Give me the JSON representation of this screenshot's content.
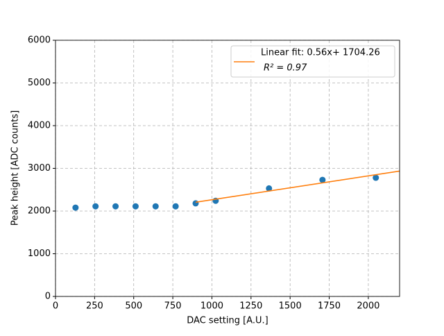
{
  "chart_data": {
    "type": "scatter",
    "xlabel": "DAC setting [A.U.]",
    "ylabel": "Peak height [ADC counts]",
    "xlim": [
      0,
      2200
    ],
    "xticks": [
      0,
      250,
      500,
      750,
      1000,
      1250,
      1500,
      1750,
      2000
    ],
    "ylim": [
      0,
      6000
    ],
    "yticks": [
      0,
      1000,
      2000,
      3000,
      4000,
      5000,
      6000
    ],
    "grid": true,
    "legend": "upper right",
    "series": [
      {
        "type": "scatter",
        "color": "#1f77b4",
        "x": [
          128,
          256,
          384,
          512,
          640,
          768,
          896,
          1024,
          1365,
          1707,
          2048
        ],
        "values": [
          2080,
          2110,
          2110,
          2110,
          2110,
          2110,
          2180,
          2240,
          2530,
          2730,
          2780
        ]
      },
      {
        "type": "line",
        "color": "#ff7f0e",
        "name": "Linear fit: 0.56x+ 1704.26",
        "name_line2": "R² = 0.97",
        "x": [
          896,
          2200
        ],
        "values": [
          2206,
          2936
        ]
      }
    ]
  }
}
